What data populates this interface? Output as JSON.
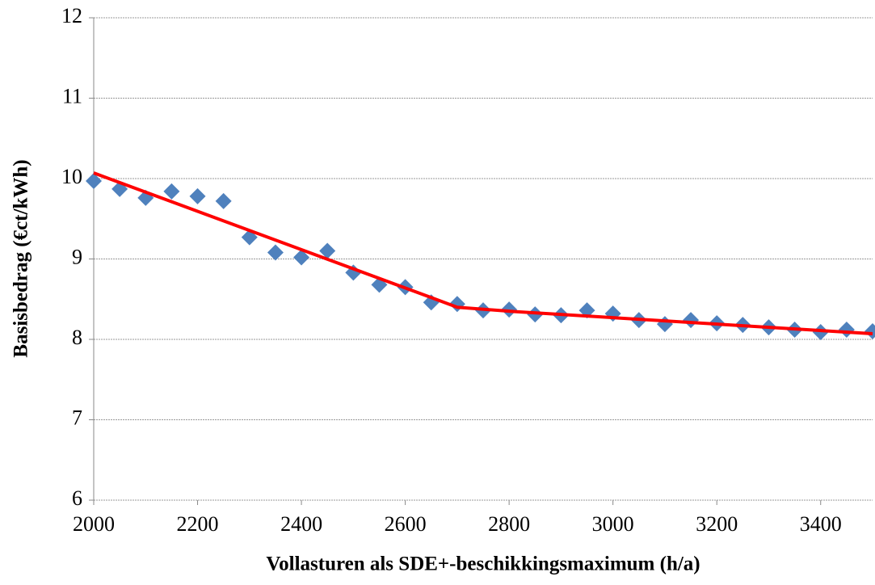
{
  "chart_data": {
    "type": "scatter",
    "x_label": "Vollasturen als SDE+-beschikkingsmaximum (h/a)",
    "y_label": "Basisbedrag (€ct/kWh)",
    "xlim": [
      2000,
      3500
    ],
    "xticks": [
      2000,
      2200,
      2400,
      2600,
      2800,
      3000,
      3200,
      3400
    ],
    "ylim": [
      6,
      12
    ],
    "yticks": [
      6,
      7,
      8,
      9,
      10,
      11,
      12
    ],
    "grid": true,
    "series": [
      {
        "type": "scatter",
        "color": "#4f81bd",
        "x": [
          2000,
          2050,
          2100,
          2150,
          2200,
          2250,
          2300,
          2350,
          2400,
          2450,
          2500,
          2550,
          2600,
          2650,
          2700,
          2750,
          2800,
          2850,
          2900,
          2950,
          3000,
          3050,
          3100,
          3150,
          3200,
          3250,
          3300,
          3350,
          3400,
          3450,
          3500
        ],
        "values": [
          9.97,
          9.87,
          9.76,
          9.84,
          9.78,
          9.72,
          9.27,
          9.08,
          9.02,
          9.1,
          8.83,
          8.68,
          8.65,
          8.46,
          8.44,
          8.36,
          8.37,
          8.31,
          8.3,
          8.36,
          8.32,
          8.24,
          8.19,
          8.24,
          8.2,
          8.18,
          8.15,
          8.12,
          8.09,
          8.12,
          8.1
        ]
      },
      {
        "type": "line",
        "color": "#ff0000",
        "x": [
          2000,
          2650,
          2700,
          2800,
          3500
        ],
        "values": [
          10.07,
          8.52,
          8.4,
          8.35,
          8.07
        ]
      }
    ]
  }
}
